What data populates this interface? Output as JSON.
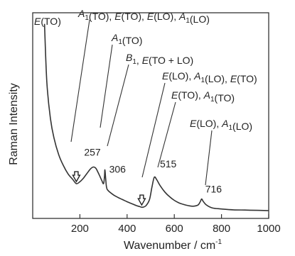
{
  "chart_data": {
    "type": "line",
    "xlabel": "Wavenumber / cm",
    "xlabel_superscript": "-1",
    "ylabel": "Raman Intensity",
    "xlim": [
      0,
      1000
    ],
    "xticks": [
      "200",
      "400",
      "600",
      "800",
      "1000"
    ],
    "xtick_values": [
      200,
      400,
      600,
      800,
      1000
    ],
    "y_axis_ticks_shown": false,
    "grid": false,
    "legend": "none",
    "line_color": "#333333",
    "series": [
      {
        "points": [
          [
            50,
            6.6
          ],
          [
            60,
            4.5
          ],
          [
            75,
            3.2
          ],
          [
            90,
            2.5
          ],
          [
            110,
            1.9
          ],
          [
            130,
            1.5
          ],
          [
            150,
            1.2
          ],
          [
            170,
            1.0
          ],
          [
            185,
            0.85
          ],
          [
            200,
            0.92
          ],
          [
            215,
            1.05
          ],
          [
            230,
            1.22
          ],
          [
            245,
            1.38
          ],
          [
            257,
            1.45
          ],
          [
            268,
            1.4
          ],
          [
            280,
            1.2
          ],
          [
            292,
            0.98
          ],
          [
            300,
            0.85
          ],
          [
            304,
            1.08
          ],
          [
            306,
            1.35
          ],
          [
            309,
            1.05
          ],
          [
            313,
            0.72
          ],
          [
            320,
            0.6
          ],
          [
            340,
            0.46
          ],
          [
            360,
            0.36
          ],
          [
            380,
            0.28
          ],
          [
            400,
            0.2
          ],
          [
            420,
            0.13
          ],
          [
            440,
            0.06
          ],
          [
            455,
            0.02
          ],
          [
            465,
            0.0
          ],
          [
            480,
            0.06
          ],
          [
            495,
            0.28
          ],
          [
            505,
            0.72
          ],
          [
            515,
            1.08
          ],
          [
            525,
            1.0
          ],
          [
            540,
            0.78
          ],
          [
            560,
            0.55
          ],
          [
            580,
            0.38
          ],
          [
            600,
            0.25
          ],
          [
            620,
            0.16
          ],
          [
            640,
            0.1
          ],
          [
            660,
            0.06
          ],
          [
            680,
            0.04
          ],
          [
            700,
            0.08
          ],
          [
            710,
            0.2
          ],
          [
            716,
            0.3
          ],
          [
            722,
            0.22
          ],
          [
            735,
            0.09
          ],
          [
            760,
            -0.02
          ],
          [
            800,
            -0.06
          ],
          [
            850,
            -0.09
          ],
          [
            900,
            -0.1
          ],
          [
            950,
            -0.11
          ],
          [
            1000,
            -0.12
          ]
        ]
      }
    ],
    "peak_labels": [
      {
        "text": "257",
        "x": 257
      },
      {
        "text": "306",
        "x": 306
      },
      {
        "text": "515",
        "x": 515
      },
      {
        "text": "716",
        "x": 716
      }
    ],
    "arrows": [
      {
        "x": 185
      },
      {
        "x": 462
      }
    ],
    "mode_annotations": [
      {
        "line1": "E(TO)",
        "x": 50
      },
      {
        "line1": "A1(TO), E(TO), E(LO), A1(LO)",
        "x": 185
      },
      {
        "line1": "A1(TO)",
        "x": 257
      },
      {
        "line1": "B1, E(TO + LO)",
        "x": 306
      },
      {
        "line1": "E(LO), A1(LO), E(TO)",
        "x": 462
      },
      {
        "line1": "E(TO), A1(TO)",
        "x": 515
      },
      {
        "line1": "E(LO), A1(LO)",
        "x": 716
      }
    ]
  }
}
